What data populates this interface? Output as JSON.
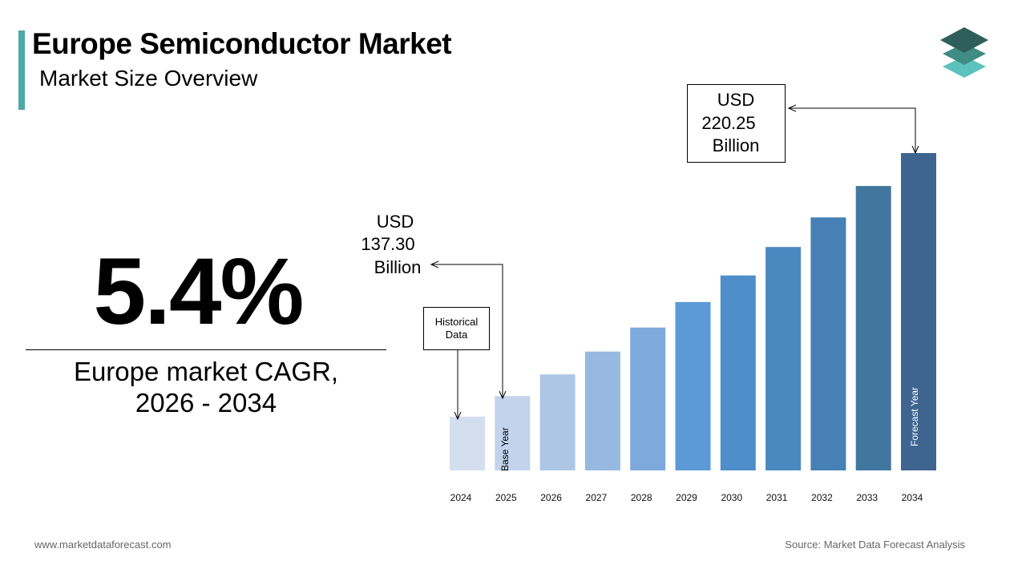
{
  "header": {
    "title": "Europe Semiconductor Market",
    "subtitle": "Market Size Overview"
  },
  "cagr": {
    "value": "5.4%",
    "label_line1": "Europe market CAGR,",
    "label_line2": "2026 - 2034"
  },
  "annotations": {
    "historical": [
      "Historical",
      "Data"
    ],
    "base_year": "Base Year",
    "forecast_year": "Forecast Year",
    "start_value": [
      "USD",
      "137.30",
      "Billion"
    ],
    "end_value": [
      "USD",
      "220.25",
      "Billion"
    ]
  },
  "footer": {
    "website": "www.marketdataforecast.com",
    "source": "Source: Market Data Forecast Analysis"
  },
  "colors": {
    "accent": "#4fa8a8",
    "logo_dark": "#2f5f5a",
    "logo_mid": "#3f8c84",
    "logo_light": "#5cc2bd"
  },
  "chart_data": {
    "type": "bar",
    "categories": [
      "2024",
      "2025",
      "2026",
      "2027",
      "2028",
      "2029",
      "2030",
      "2031",
      "2032",
      "2033",
      "2034"
    ],
    "values": [
      130.3,
      137.3,
      144.7,
      152.5,
      160.7,
      169.4,
      178.5,
      188.2,
      198.3,
      209.0,
      220.25
    ],
    "bar_colors": [
      "#d3deef",
      "#c2d3eb",
      "#adc6e6",
      "#97b8e0",
      "#7ea9dc",
      "#5b9ad6",
      "#4e8fcb",
      "#4a88c0",
      "#4680b5",
      "#41779f",
      "#3e6590"
    ],
    "ylim": [
      130,
      220.25
    ],
    "grid": false,
    "legend": "none"
  }
}
